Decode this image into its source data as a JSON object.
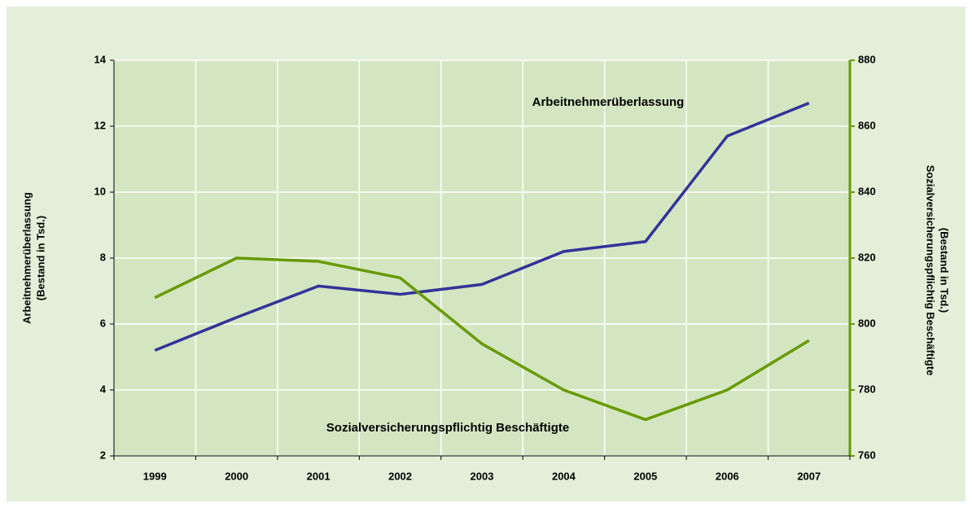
{
  "chart_data": {
    "type": "line",
    "categories": [
      "1999",
      "2000",
      "2001",
      "2002",
      "2003",
      "2004",
      "2005",
      "2006",
      "2007"
    ],
    "series": [
      {
        "name": "Arbeitnehmerüberlassung",
        "color": "#333399",
        "values": [
          5.2,
          6.2,
          7.15,
          6.9,
          7.2,
          8.2,
          8.5,
          11.7,
          12.7
        ]
      },
      {
        "name": "Sozialversicherungspflichtig Beschäftigte",
        "color": "#669900",
        "axis": "y2",
        "values": [
          808,
          820,
          819,
          814,
          794,
          780,
          771,
          780,
          795
        ]
      }
    ],
    "ylabel": [
      "Arbeitnehmerüberlassung",
      "(Bestand in Tsd.)"
    ],
    "y2label": [
      "Sozialversicherungspflichtig Beschäftigte",
      "(Bestand in Tsd.)"
    ],
    "ylim": [
      2,
      14
    ],
    "yticks": [
      2,
      4,
      6,
      8,
      10,
      12,
      14
    ],
    "y2lim": [
      760,
      880
    ],
    "y2ticks": [
      760,
      780,
      800,
      820,
      840,
      860,
      880
    ],
    "grid": true
  }
}
